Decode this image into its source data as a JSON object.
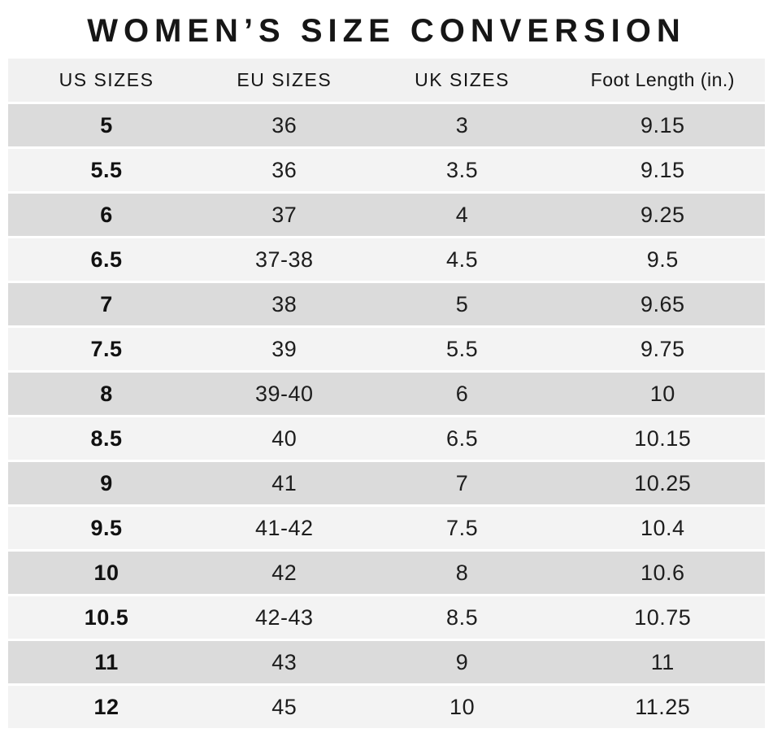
{
  "title": "WOMEN’S SIZE CONVERSION",
  "table": {
    "columns": [
      "US SIZES",
      "EU SIZES",
      "UK SIZES",
      "Foot Length (in.)"
    ],
    "rows": [
      [
        "5",
        "36",
        "3",
        "9.15"
      ],
      [
        "5.5",
        "36",
        "3.5",
        "9.15"
      ],
      [
        "6",
        "37",
        "4",
        "9.25"
      ],
      [
        "6.5",
        "37-38",
        "4.5",
        "9.5"
      ],
      [
        "7",
        "38",
        "5",
        "9.65"
      ],
      [
        "7.5",
        "39",
        "5.5",
        "9.75"
      ],
      [
        "8",
        "39-40",
        "6",
        "10"
      ],
      [
        "8.5",
        "40",
        "6.5",
        "10.15"
      ],
      [
        "9",
        "41",
        "7",
        "10.25"
      ],
      [
        "9.5",
        "41-42",
        "7.5",
        "10.4"
      ],
      [
        "10",
        "42",
        "8",
        "10.6"
      ],
      [
        "10.5",
        "42-43",
        "8.5",
        "10.75"
      ],
      [
        "11",
        "43",
        "9",
        "11"
      ],
      [
        "12",
        "45",
        "10",
        "11.25"
      ]
    ]
  },
  "colors": {
    "header_bg": "#f1f1f1",
    "row_dark_bg": "#dbdbdb",
    "row_light_bg": "#f3f3f3",
    "text": "#1d1d1d"
  }
}
